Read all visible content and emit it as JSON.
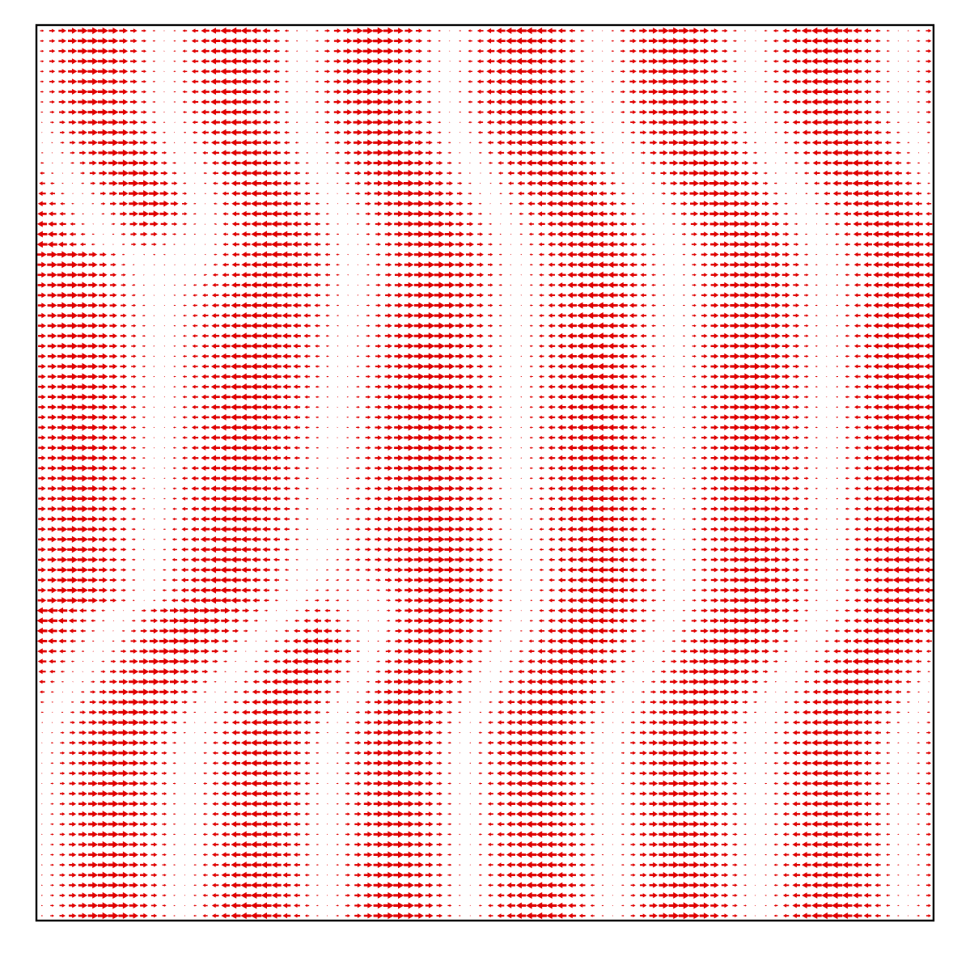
{
  "chart_data": {
    "type": "quiver",
    "title": "",
    "xlabel": "",
    "ylabel": "",
    "ticks_shown": false,
    "grid": false,
    "legend": "none",
    "arrow_color": "#e00000",
    "frame_color": "#000000",
    "background": "#ffffff",
    "field": {
      "grid_columns": 88,
      "grid_rows": 88,
      "direction": "horizontal",
      "max_magnitude": 1.0,
      "stripe_count_half_periods": 6,
      "defect_dislocations": [
        {
          "x": 0.155,
          "y": 0.248
        },
        {
          "x": 0.355,
          "y": 0.655
        }
      ],
      "bottom_band_centers": [
        0.14,
        0.28,
        0.43,
        0.57,
        0.71,
        0.86
      ]
    }
  }
}
